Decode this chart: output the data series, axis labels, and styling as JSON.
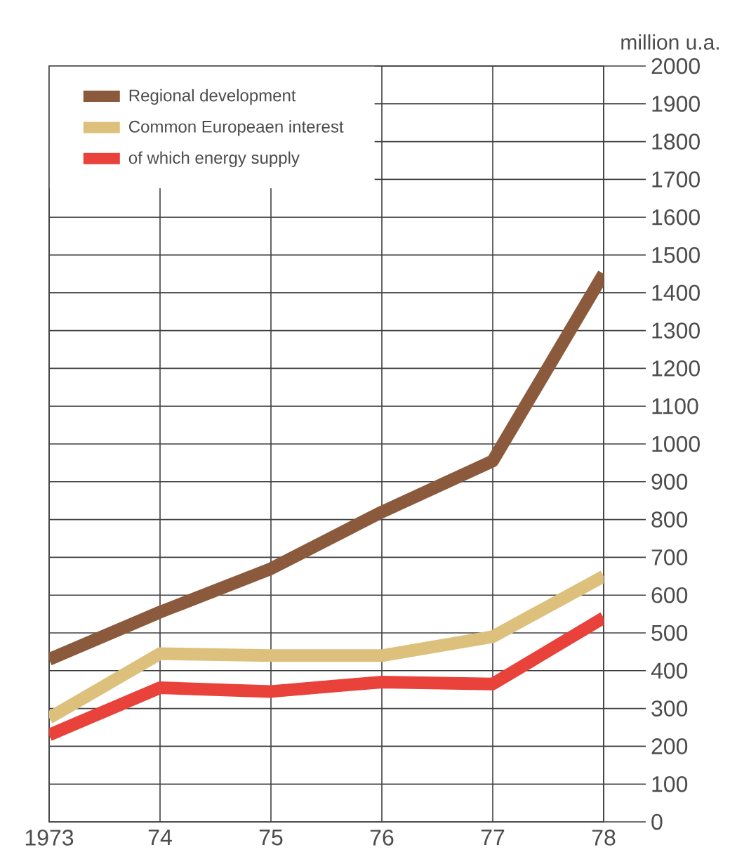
{
  "chart_data": {
    "type": "line",
    "ylabel": "million u.a.",
    "x": [
      1973,
      1974,
      1975,
      1976,
      1977,
      1978
    ],
    "series": [
      {
        "name": "Regional development",
        "color": "#8b5a3c",
        "values": [
          430,
          555,
          670,
          820,
          955,
          1450
        ]
      },
      {
        "name": "Common Europeaen interest",
        "color": "#dcc07c",
        "values": [
          275,
          445,
          440,
          440,
          490,
          650
        ]
      },
      {
        "name": "of which energy supply",
        "color": "#e8423a",
        "values": [
          230,
          355,
          345,
          370,
          365,
          540
        ]
      }
    ],
    "xlim": [
      1973,
      1978
    ],
    "xticks": [
      1973,
      {
        "value": 1974,
        "label": "74"
      },
      {
        "value": 1975,
        "label": "75"
      },
      {
        "value": 1976,
        "label": "76"
      },
      {
        "value": 1977,
        "label": "77"
      },
      {
        "value": 1978,
        "label": "78"
      }
    ],
    "ylim": [
      0,
      2000
    ],
    "yticks": [
      0,
      100,
      200,
      300,
      400,
      500,
      600,
      700,
      800,
      900,
      1000,
      1100,
      1200,
      1300,
      1400,
      1500,
      1600,
      1700,
      1800,
      1900,
      2000
    ],
    "grid": true,
    "legend": "top left",
    "marker": "none",
    "line_style": "solid"
  }
}
